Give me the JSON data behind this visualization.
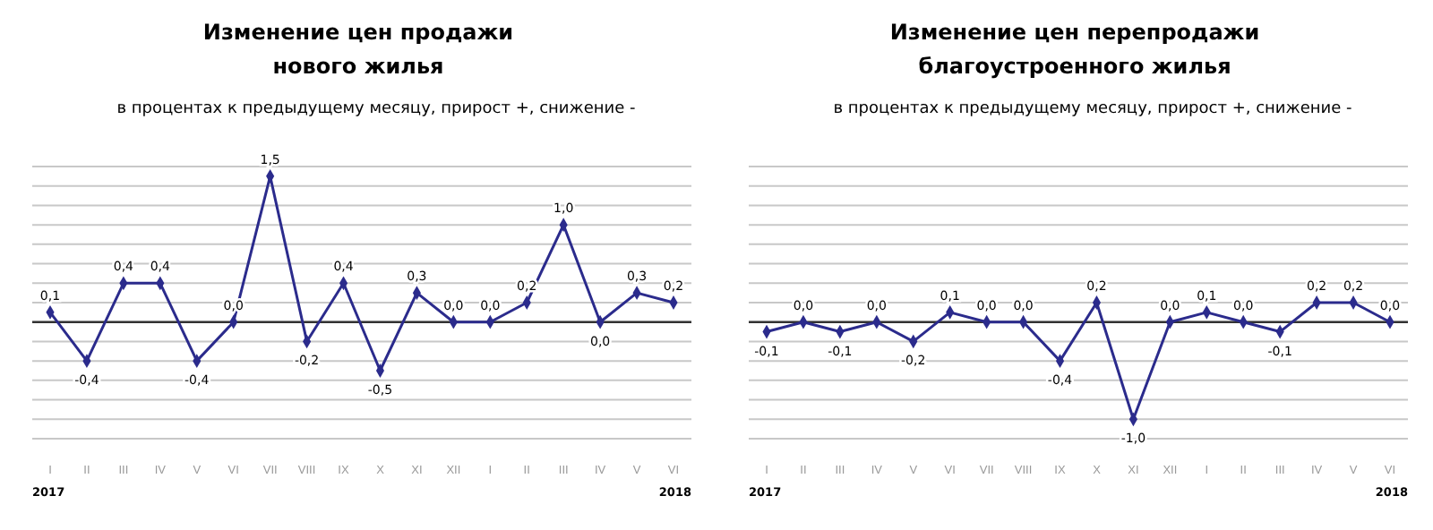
{
  "chart_data": [
    {
      "type": "line",
      "title": "Изменение цен продажи\nнового жилья",
      "subtitle": "в процентах к предыдущему месяцу, прирост +, снижение -",
      "categories": [
        "I",
        "II",
        "III",
        "IV",
        "V",
        "VI",
        "VII",
        "VIII",
        "IX",
        "X",
        "XI",
        "XII",
        "I",
        "II",
        "III",
        "IV",
        "V",
        "VI"
      ],
      "series": [
        {
          "color": "#2b2b8c",
          "values": [
            0.1,
            -0.4,
            0.4,
            0.4,
            -0.4,
            0.0,
            1.5,
            -0.2,
            0.4,
            -0.5,
            0.3,
            0.0,
            0.0,
            0.2,
            1.0,
            0.0,
            0.3,
            0.2
          ],
          "value_labels": [
            "0,1",
            "-0,4",
            "0,4",
            "0,4",
            "-0,4",
            "0,0",
            "1,5",
            "-0,2",
            "0,4",
            "-0,5",
            "0,3",
            "0,0",
            "0,0",
            "0,2",
            "1,0",
            "0,0",
            "0,3",
            "0,2"
          ]
        }
      ],
      "grid": "y",
      "tick_labels": "x",
      "marker": "diamond",
      "line_style": "solid",
      "annotations": [
        "2017",
        "2018"
      ]
    },
    {
      "type": "line",
      "title": "Изменение цен перепродажи\nблагоустроенного жилья",
      "subtitle": "в процентах к предыдущему месяцу, прирост +, снижение -",
      "categories": [
        "I",
        "II",
        "III",
        "IV",
        "V",
        "VI",
        "VII",
        "VIII",
        "IX",
        "X",
        "XI",
        "XII",
        "I",
        "II",
        "III",
        "IV",
        "V",
        "VI"
      ],
      "series": [
        {
          "color": "#2b2b8c",
          "values": [
            -0.1,
            0.0,
            -0.1,
            0.0,
            -0.2,
            0.1,
            0.0,
            0.0,
            -0.4,
            0.2,
            -1.0,
            0.0,
            0.1,
            0.0,
            -0.1,
            0.2,
            0.2,
            0.0
          ],
          "value_labels": [
            "-0,1",
            "0,0",
            "-0,1",
            "0,0",
            "-0,2",
            "0,1",
            "0,0",
            "0,0",
            "-0,4",
            "0,2",
            "-1,0",
            "0,0",
            "0,1",
            "0,0",
            "-0,1",
            "0,2",
            "0,2",
            "0,0"
          ]
        }
      ],
      "grid": "y",
      "tick_labels": "x",
      "marker": "diamond",
      "line_style": "solid",
      "annotations": [
        "2017",
        "2018"
      ]
    }
  ]
}
